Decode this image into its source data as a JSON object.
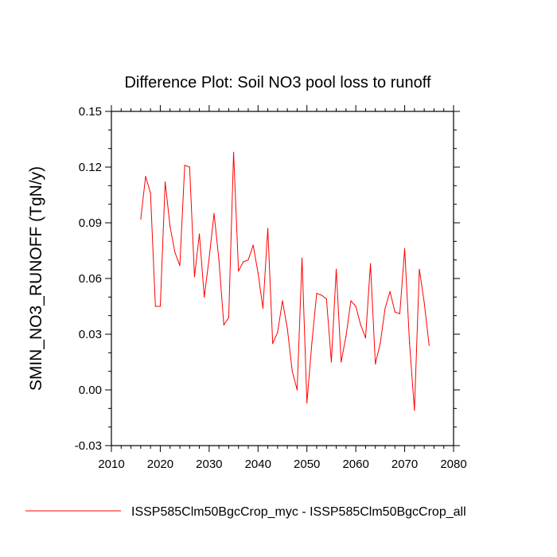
{
  "chart_data": {
    "type": "line",
    "title": "Difference Plot: Soil NO3 pool loss to runoff",
    "xlabel": "",
    "ylabel": "SMIN_NO3_RUNOFF  (TgN/y)",
    "xlim": [
      2010,
      2080
    ],
    "ylim": [
      -0.03,
      0.15
    ],
    "x_ticks": [
      "2010",
      "2020",
      "2030",
      "2040",
      "2050",
      "2060",
      "2070",
      "2080"
    ],
    "y_ticks": [
      "-0.03",
      "0.00",
      "0.03",
      "0.06",
      "0.09",
      "0.12",
      "0.15"
    ],
    "grid": false,
    "legend_position": "bottom",
    "series": [
      {
        "name": "ISSP585Clm50BgcCrop_myc - ISSP585Clm50BgcCrop_all",
        "color": "#ff0000",
        "x": [
          2016,
          2017,
          2018,
          2019,
          2020,
          2021,
          2022,
          2023,
          2024,
          2025,
          2026,
          2027,
          2028,
          2029,
          2030,
          2031,
          2032,
          2033,
          2034,
          2035,
          2036,
          2037,
          2038,
          2039,
          2040,
          2041,
          2042,
          2043,
          2044,
          2045,
          2046,
          2047,
          2048,
          2049,
          2050,
          2051,
          2052,
          2053,
          2054,
          2055,
          2056,
          2057,
          2058,
          2059,
          2060,
          2061,
          2062,
          2063,
          2064,
          2065,
          2066,
          2067,
          2068,
          2069,
          2070,
          2071,
          2072,
          2073,
          2074,
          2075
        ],
        "y": [
          0.092,
          0.115,
          0.106,
          0.045,
          0.045,
          0.112,
          0.088,
          0.074,
          0.067,
          0.121,
          0.12,
          0.061,
          0.084,
          0.05,
          0.071,
          0.095,
          0.07,
          0.035,
          0.039,
          0.128,
          0.064,
          0.069,
          0.07,
          0.078,
          0.063,
          0.044,
          0.087,
          0.025,
          0.031,
          0.048,
          0.033,
          0.01,
          0.0,
          0.071,
          -0.007,
          0.025,
          0.052,
          0.051,
          0.049,
          0.015,
          0.065,
          0.015,
          0.029,
          0.048,
          0.045,
          0.035,
          0.028,
          0.068,
          0.014,
          0.025,
          0.044,
          0.053,
          0.042,
          0.041,
          0.076,
          0.025,
          -0.011,
          0.065,
          0.047,
          0.024
        ]
      }
    ]
  }
}
